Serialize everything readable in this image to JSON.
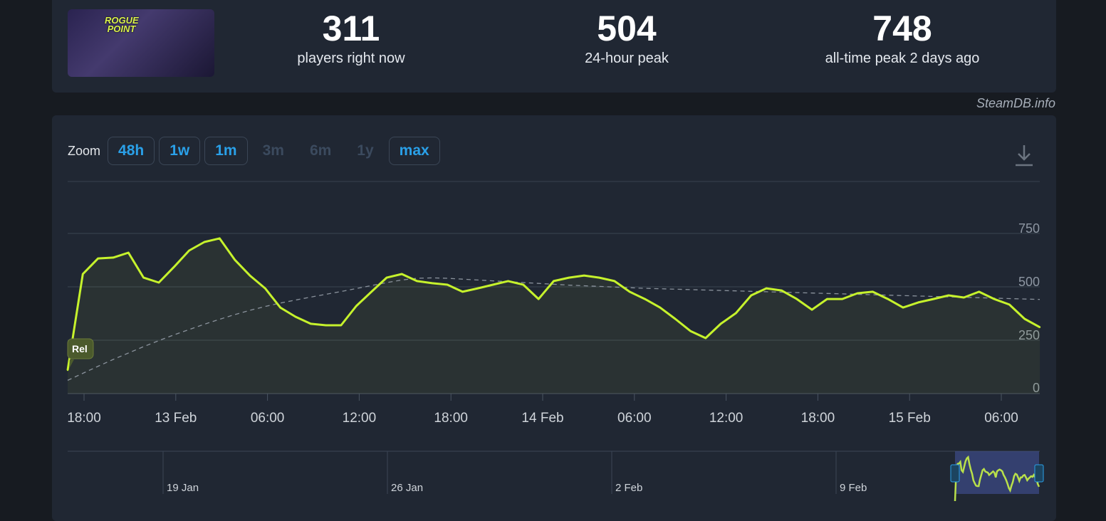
{
  "stats": {
    "current": {
      "value": "311",
      "label": "players right now"
    },
    "peak24": {
      "value": "504",
      "label": "24-hour peak"
    },
    "alltime": {
      "value": "748",
      "label": "all-time peak 2 days ago"
    },
    "game_logo_text": "ROGUE POINT"
  },
  "credit": "SteamDB.info",
  "zoom": {
    "label": "Zoom",
    "buttons": [
      {
        "label": "48h",
        "enabled": true
      },
      {
        "label": "1w",
        "enabled": true
      },
      {
        "label": "1m",
        "enabled": true
      },
      {
        "label": "3m",
        "enabled": false
      },
      {
        "label": "6m",
        "enabled": false
      },
      {
        "label": "1y",
        "enabled": false
      },
      {
        "label": "max",
        "enabled": true
      }
    ]
  },
  "download_icon": "download-icon",
  "colors": {
    "line": "#c6f22c",
    "trend": "#8a929c",
    "accent": "#2aa0e8"
  },
  "chart_data": {
    "type": "line",
    "x_start": "12 Feb 17:00",
    "x_step_hours": 1,
    "x_ticks": [
      "18:00",
      "13 Feb",
      "06:00",
      "12:00",
      "18:00",
      "14 Feb",
      "06:00",
      "12:00",
      "18:00",
      "15 Feb",
      "06:00"
    ],
    "y_ticks": [
      0,
      250,
      500,
      750
    ],
    "ylim": [
      0,
      750
    ],
    "grid": true,
    "annotation": "Rel",
    "series": [
      {
        "values": [
          110,
          560,
          633,
          637,
          660,
          543,
          520,
          593,
          670,
          710,
          727,
          627,
          553,
          493,
          403,
          360,
          327,
          320,
          320,
          410,
          477,
          543,
          560,
          527,
          517,
          510,
          477,
          493,
          510,
          527,
          510,
          443,
          527,
          543,
          553,
          543,
          527,
          477,
          443,
          403,
          350,
          293,
          260,
          327,
          377,
          460,
          493,
          483,
          443,
          393,
          443,
          443,
          470,
          477,
          443,
          403,
          427,
          443,
          460,
          450,
          477,
          443,
          417,
          350,
          311
        ]
      },
      {
        "style": "dashed",
        "values": [
          62,
          95,
          128,
          160,
          190,
          220,
          248,
          275,
          300,
          325,
          348,
          370,
          390,
          408,
          424,
          438,
          452,
          465,
          478,
          492,
          506,
          520,
          532,
          540,
          542,
          540,
          536,
          532,
          528,
          524,
          520,
          516,
          512,
          508,
          505,
          502,
          499,
          496,
          493,
          491,
          489,
          487,
          485,
          483,
          481,
          479,
          477,
          475,
          473,
          471,
          469,
          467,
          465,
          463,
          461,
          459,
          457,
          455,
          453,
          451,
          449,
          447,
          445,
          443,
          441
        ]
      }
    ]
  },
  "navigator": {
    "labels": [
      "19 Jan",
      "26 Jan",
      "2 Feb",
      "9 Feb"
    ]
  }
}
